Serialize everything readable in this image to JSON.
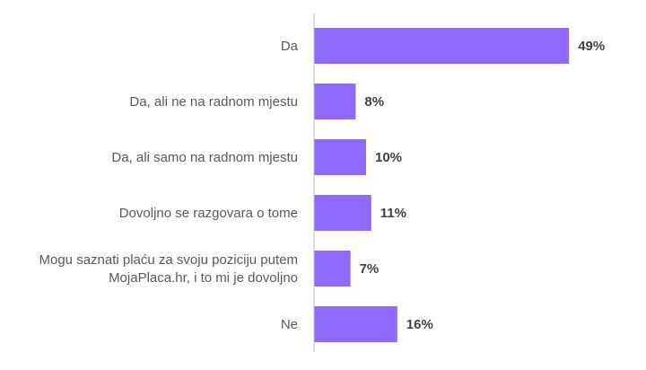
{
  "chart_data": {
    "type": "bar",
    "orientation": "horizontal",
    "categories": [
      [
        "Da"
      ],
      [
        "Da, ali ne na radnom mjestu"
      ],
      [
        "Da, ali samo na radnom mjestu"
      ],
      [
        "Dovoljno se razgovara o tome"
      ],
      [
        "Mogu saznati plaću za svoju poziciju putem",
        "MojaPlaca.hr, i to mi je dovoljno"
      ],
      [
        "Ne"
      ]
    ],
    "values": [
      49,
      8,
      10,
      11,
      7,
      16
    ],
    "value_labels": [
      "49%",
      "8%",
      "10%",
      "11%",
      "7%",
      "16%"
    ],
    "unit": "%",
    "xlim": [
      0,
      100
    ],
    "bar_color": "#8e69fb",
    "axis_color": "#bfbfbf",
    "grid": false,
    "legend": "none",
    "title": "",
    "xlabel": "",
    "ylabel": ""
  }
}
